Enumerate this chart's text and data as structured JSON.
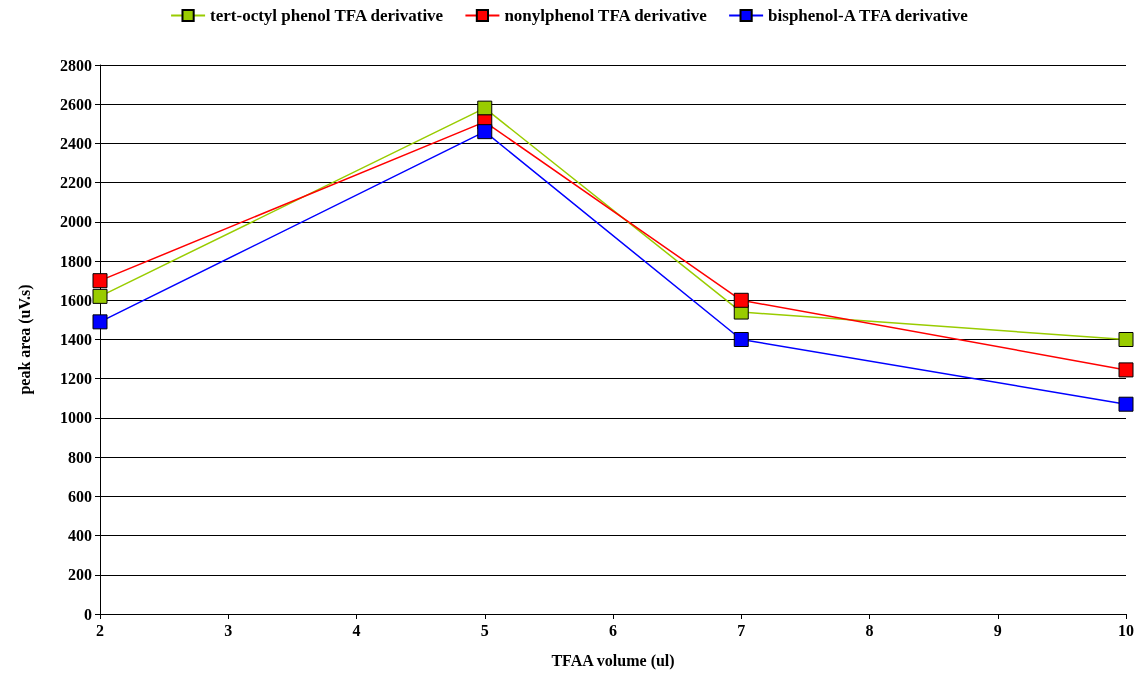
{
  "chart_data": {
    "type": "line",
    "xlabel": "TFAA volume (ul)",
    "ylabel": "peak area (uV.s)",
    "x": [
      2,
      5,
      7,
      10
    ],
    "series": [
      {
        "name": "tert-octyl phenol TFA derivative",
        "color": "#99cc00",
        "values": [
          1620,
          2580,
          1540,
          1400
        ]
      },
      {
        "name": "nonylphenol TFA derivative",
        "color": "#ff0000",
        "values": [
          1700,
          2510,
          1600,
          1245
        ]
      },
      {
        "name": "bisphenol-A TFA derivative",
        "color": "#0000ff",
        "values": [
          1490,
          2460,
          1400,
          1070
        ]
      }
    ],
    "xlim": [
      2,
      10
    ],
    "xticks": [
      2,
      3,
      4,
      5,
      6,
      7,
      8,
      9,
      10
    ],
    "ylim": [
      0,
      2800
    ],
    "yticks": [
      0,
      200,
      400,
      600,
      800,
      1000,
      1200,
      1400,
      1600,
      1800,
      2000,
      2200,
      2400,
      2600,
      2800
    ],
    "grid": "y",
    "legend": "top",
    "marker": "square",
    "line_style": "solid"
  }
}
